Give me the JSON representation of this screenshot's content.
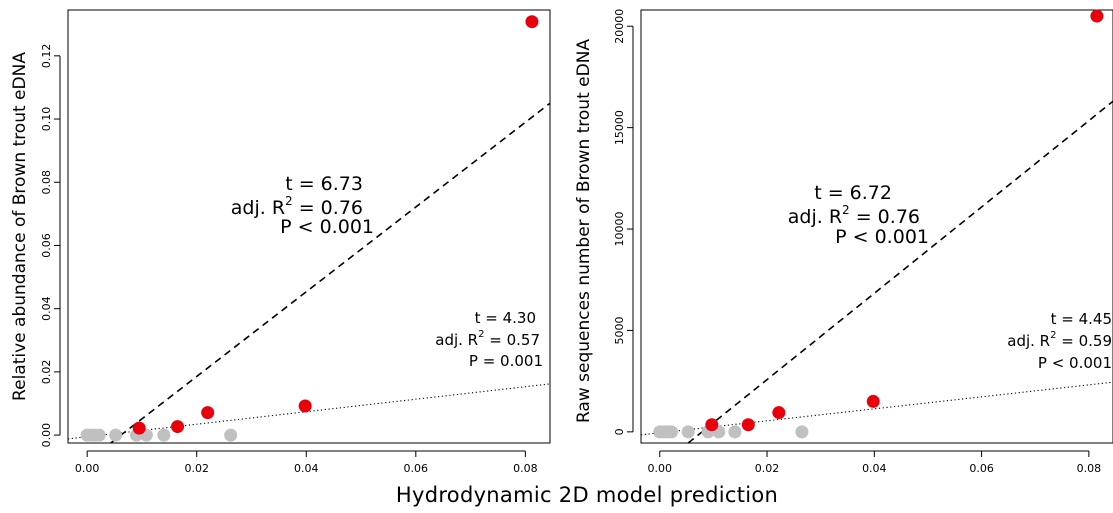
{
  "figure": {
    "xlabel": "Hydrodynamic 2D model prediction"
  },
  "colors": {
    "highlight": "#e8000b",
    "other": "#c0c0c0"
  },
  "chart_data": [
    {
      "type": "scatter",
      "ylabel": "Relative abundance of Brown trout eDNA",
      "xlim": [
        -0.0035,
        0.0845
      ],
      "ylim": [
        -0.0025,
        0.1345
      ],
      "x_ticks": [
        "0.00",
        "0.02",
        "0.04",
        "0.06",
        "0.08"
      ],
      "x_tick_values": [
        0,
        0.02,
        0.04,
        0.06,
        0.08
      ],
      "y_ticks": [
        "0.00",
        "0.02",
        "0.04",
        "0.06",
        "0.08",
        "0.10",
        "0.12"
      ],
      "y_tick_values": [
        0,
        0.02,
        0.04,
        0.06,
        0.08,
        0.1,
        0.12
      ],
      "red_points": [
        [
          0.0095,
          0.0022
        ],
        [
          0.0165,
          0.0027
        ],
        [
          0.022,
          0.0071
        ],
        [
          0.0398,
          0.0092
        ],
        [
          0.0812,
          0.1308
        ]
      ],
      "grey_points": [
        [
          0.0,
          0.0
        ],
        [
          0.0008,
          0.0
        ],
        [
          0.0015,
          0.0
        ],
        [
          0.0022,
          0.0
        ],
        [
          0.0052,
          0.0
        ],
        [
          0.009,
          0.0
        ],
        [
          0.0108,
          0.0
        ],
        [
          0.014,
          0.0
        ],
        [
          0.0262,
          0.0
        ]
      ],
      "dashed_fit": [
        [
          0.0043,
          -0.0025
        ],
        [
          0.0845,
          0.105
        ]
      ],
      "dotted_fit": [
        [
          -0.0035,
          -0.0012
        ],
        [
          0.0845,
          0.0162
        ]
      ],
      "annotation_red": {
        "t": "t = 6.73",
        "r2_prefix": "adj. R",
        "r2_exp": "2",
        "r2_value": " = 0.76",
        "p": "P < 0.001"
      },
      "annotation_all": {
        "t": "t = 4.30",
        "r2_prefix": "adj. R",
        "r2_exp": "2",
        "r2_value": " = 0.57",
        "p": "P = 0.001"
      }
    },
    {
      "type": "scatter",
      "ylabel": "Raw sequences number of Brown trout eDNA",
      "xlim": [
        -0.0035,
        0.0845
      ],
      "ylim": [
        -550,
        20800
      ],
      "x_ticks": [
        "0.00",
        "0.02",
        "0.04",
        "0.06",
        "0.08"
      ],
      "x_tick_values": [
        0,
        0.02,
        0.04,
        0.06,
        0.08
      ],
      "y_ticks": [
        "0",
        "5000",
        "10000",
        "15000",
        "20000"
      ],
      "y_tick_values": [
        0,
        5000,
        10000,
        15000,
        20000
      ],
      "red_points": [
        [
          0.0097,
          350
        ],
        [
          0.0165,
          350
        ],
        [
          0.0222,
          950
        ],
        [
          0.0398,
          1500
        ],
        [
          0.0815,
          20500
        ]
      ],
      "grey_points": [
        [
          0.0,
          0
        ],
        [
          0.0008,
          0
        ],
        [
          0.0015,
          0
        ],
        [
          0.0022,
          0
        ],
        [
          0.0053,
          0
        ],
        [
          0.009,
          0
        ],
        [
          0.011,
          0
        ],
        [
          0.014,
          0
        ],
        [
          0.0265,
          0
        ]
      ],
      "dashed_fit": [
        [
          0.0053,
          -550
        ],
        [
          0.0845,
          16300
        ]
      ],
      "dotted_fit": [
        [
          -0.0035,
          -150
        ],
        [
          0.0845,
          2450
        ]
      ],
      "annotation_red": {
        "t": "t = 6.72",
        "r2_prefix": "adj. R",
        "r2_exp": "2",
        "r2_value": " = 0.76",
        "p": "P < 0.001"
      },
      "annotation_all": {
        "t": "t = 4.45",
        "r2_prefix": "adj. R",
        "r2_exp": "2",
        "r2_value": " = 0.59",
        "p": "P < 0.001"
      }
    }
  ]
}
